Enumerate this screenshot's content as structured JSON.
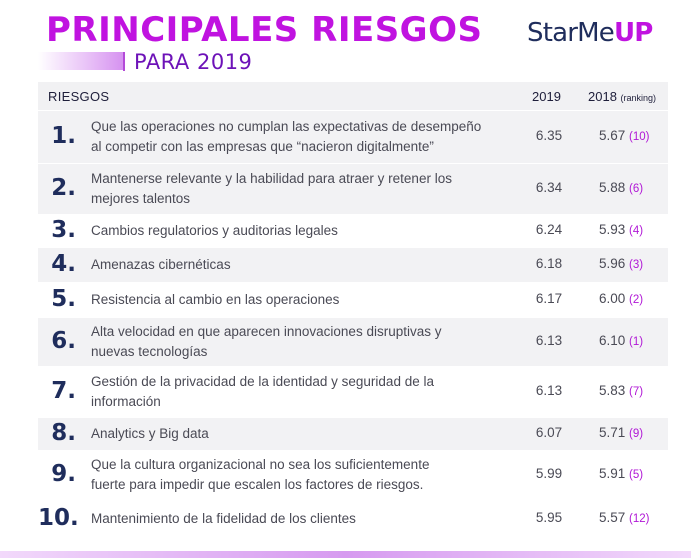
{
  "header": {
    "title": "PRINCIPALES RIESGOS",
    "subtitle": "PARA 2019",
    "logo_main": "StarMe",
    "logo_accent": "UP"
  },
  "table": {
    "col_riesgos": "RIESGOS",
    "col_2019": "2019",
    "col_2018": "2018",
    "col_2018_note": "(ranking)",
    "rows": [
      {
        "num": "1.",
        "line1": "Que las operaciones no cumplan las expectativas de desempeño",
        "line2": "al competir con  las empresas que “nacieron digitalmente”",
        "v2019": "6.35",
        "v2018": "5.67",
        "rank": "(10)"
      },
      {
        "num": "2.",
        "line1": "Mantenerse relevante y la habilidad para atraer y retener los",
        "line2": "mejores talentos",
        "v2019": "6.34",
        "v2018": "5.88",
        "rank": "(6)"
      },
      {
        "num": "3.",
        "line1": "Cambios regulatorios y auditorias legales",
        "line2": "",
        "v2019": "6.24",
        "v2018": "5.93",
        "rank": "(4)"
      },
      {
        "num": "4.",
        "line1": "Amenazas cibernéticas",
        "line2": "",
        "v2019": "6.18",
        "v2018": "5.96",
        "rank": "(3)"
      },
      {
        "num": "5.",
        "line1": "Resistencia al cambio en las operaciones",
        "line2": "",
        "v2019": "6.17",
        "v2018": "6.00",
        "rank": "(2)"
      },
      {
        "num": "6.",
        "line1": "Alta velocidad en que aparecen innovaciones disruptivas y",
        "line2": "nuevas tecnologías",
        "v2019": "6.13",
        "v2018": "6.10",
        "rank": "(1)"
      },
      {
        "num": "7.",
        "line1": "Gestión de la privacidad de la identidad y seguridad de la",
        "line2": "información",
        "v2019": "6.13",
        "v2018": "5.83",
        "rank": "(7)"
      },
      {
        "num": "8.",
        "line1": "Analytics y Big data",
        "line2": "",
        "v2019": "6.07",
        "v2018": "5.71",
        "rank": "(9)"
      },
      {
        "num": "9.",
        "line1": "Que la cultura organizacional no sea los suficientemente",
        "line2": "fuerte para impedir que escalen los factores de riesgos.",
        "v2019": "5.99",
        "v2018": "5.91",
        "rank": "(5)"
      },
      {
        "num": "10.",
        "line1": "Mantenimiento de la fidelidad de los clientes",
        "line2": "",
        "v2019": "5.95",
        "v2018": "5.57",
        "rank": "(12)"
      }
    ]
  },
  "colors": {
    "title": "#c013e0",
    "subtitle": "#6d12b8",
    "numbers": "#1f2d5c",
    "rank": "#b118d6",
    "row_shade": "#f2f2f4"
  }
}
